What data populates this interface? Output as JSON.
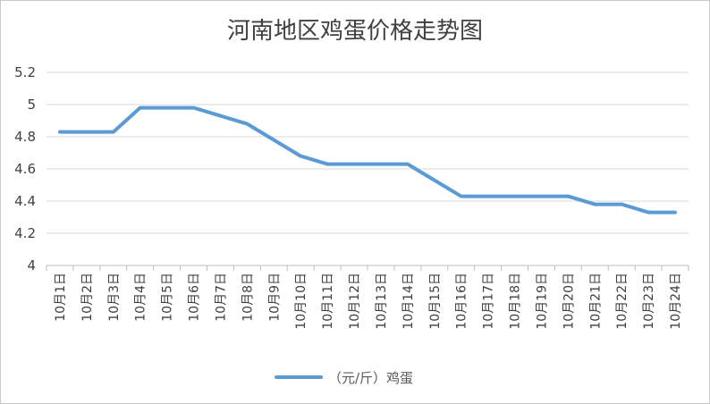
{
  "chart_data": {
    "type": "line",
    "title": "河南地区鸡蛋价格走势图",
    "categories": [
      "10月1日",
      "10月2日",
      "10月3日",
      "10月4日",
      "10月5日",
      "10月6日",
      "10月7日",
      "10月8日",
      "10月9日",
      "10月10日",
      "10月11日",
      "10月12日",
      "10月13日",
      "10月14日",
      "10月15日",
      "10月16日",
      "10月17日",
      "10月18日",
      "10月19日",
      "10月20日",
      "10月21日",
      "10月22日",
      "10月23日",
      "10月24日"
    ],
    "series": [
      {
        "name": "（元/斤）鸡蛋",
        "color": "#5b9bd5",
        "values": [
          4.83,
          4.83,
          4.83,
          4.98,
          4.98,
          4.98,
          4.93,
          4.88,
          4.78,
          4.68,
          4.63,
          4.63,
          4.63,
          4.63,
          4.53,
          4.43,
          4.43,
          4.43,
          4.43,
          4.43,
          4.38,
          4.38,
          4.33,
          4.33
        ]
      }
    ],
    "yticks": [
      "4",
      "4.2",
      "4.4",
      "4.6",
      "4.8",
      "5",
      "5.2"
    ],
    "ylim": [
      4,
      5.2
    ],
    "grid": true,
    "legend": "bottom"
  }
}
